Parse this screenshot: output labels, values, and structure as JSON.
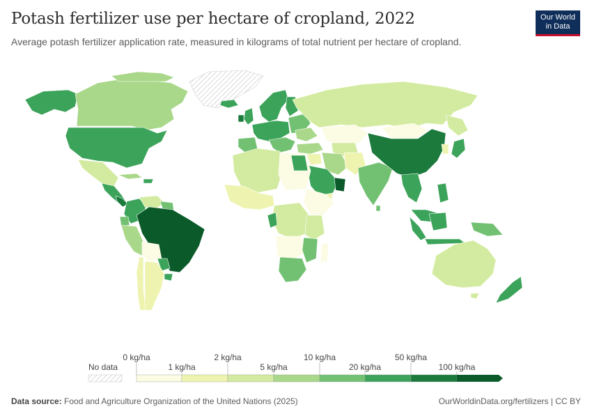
{
  "header": {
    "title": "Potash fertilizer use per hectare of cropland, 2022",
    "subtitle": "Average potash fertilizer application rate, measured in kilograms of total nutrient per hectare of cropland."
  },
  "logo": {
    "line1": "Our World",
    "line2": "in Data",
    "bg_color": "#0f2e5a",
    "accent_color": "#c8102e"
  },
  "legend": {
    "no_data_label": "No data",
    "top_labels": [
      "0 kg/ha",
      "2 kg/ha",
      "10 kg/ha",
      "50 kg/ha"
    ],
    "bottom_labels": [
      "1 kg/ha",
      "5 kg/ha",
      "20 kg/ha",
      "100 kg/ha"
    ],
    "bins": [
      {
        "from": 0,
        "to": 1,
        "color": "#fcfbe3"
      },
      {
        "from": 1,
        "to": 2,
        "color": "#eef4b0"
      },
      {
        "from": 2,
        "to": 5,
        "color": "#d3eba0"
      },
      {
        "from": 5,
        "to": 10,
        "color": "#a9d88a"
      },
      {
        "from": 10,
        "to": 20,
        "color": "#72c173"
      },
      {
        "from": 20,
        "to": 50,
        "color": "#3ca35a"
      },
      {
        "from": 50,
        "to": 100,
        "color": "#1b7a3c"
      },
      {
        "from": 100,
        "to": null,
        "color": "#0b5a2a"
      }
    ]
  },
  "footer": {
    "source_label": "Data source:",
    "source_text": "Food and Agriculture Organization of the United Nations (2025)",
    "link": "OurWorldinData.org/fertilizers | CC BY"
  }
}
